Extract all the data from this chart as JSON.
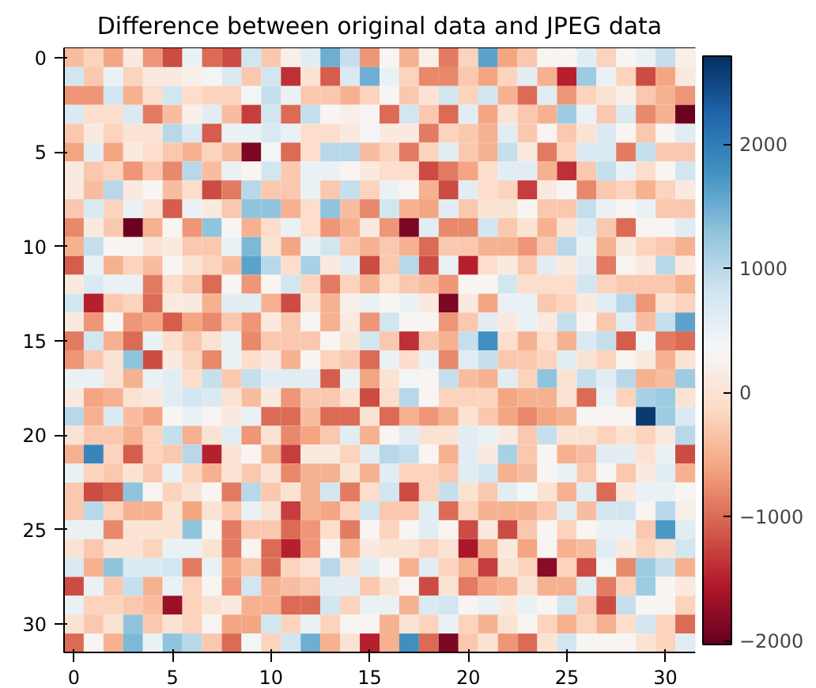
{
  "chart_data": {
    "type": "heatmap",
    "title": "Difference between original data and JPEG data",
    "categories": [
      "0",
      null,
      null,
      null,
      null,
      "5",
      null,
      null,
      null,
      null,
      "10",
      null,
      null,
      null,
      null,
      "15",
      null,
      null,
      null,
      null,
      "20",
      null,
      null,
      null,
      null,
      "25",
      null,
      null,
      null,
      null,
      "30",
      null
    ],
    "y_categories": [
      "0",
      null,
      null,
      null,
      null,
      "5",
      null,
      null,
      null,
      null,
      "10",
      null,
      null,
      null,
      null,
      "15",
      null,
      null,
      null,
      null,
      "20",
      null,
      null,
      null,
      null,
      "25",
      null,
      null,
      null,
      null,
      "30",
      null
    ],
    "clim": [
      -2030,
      2710
    ],
    "cticks": [
      -2000,
      -1000,
      0,
      1000,
      2000
    ],
    "cells": [
      [
        -400,
        -200,
        -600,
        100,
        -700,
        -1200,
        500,
        -1000,
        -1200,
        800,
        -300,
        200,
        600,
        1500,
        900,
        -700,
        300,
        -500,
        200,
        -900,
        -200,
        1600,
        -600,
        -300,
        300,
        300,
        600,
        -200,
        300,
        500,
        900,
        200
      ],
      [
        800,
        -300,
        500,
        -200,
        100,
        100,
        200,
        400,
        700,
        -300,
        800,
        -1400,
        0,
        -1100,
        700,
        1500,
        500,
        -200,
        -800,
        -800,
        -300,
        -600,
        -200,
        600,
        -500,
        -1500,
        1200,
        500,
        -200,
        -1200,
        -600,
        100
      ],
      [
        -700,
        -700,
        800,
        -500,
        -100,
        800,
        -100,
        -200,
        -200,
        400,
        900,
        500,
        -300,
        -300,
        -500,
        -200,
        300,
        -300,
        0,
        800,
        -200,
        800,
        -500,
        -1000,
        600,
        -700,
        -200,
        0,
        200,
        -300,
        -500,
        -700
      ],
      [
        700,
        -100,
        -100,
        700,
        -900,
        -400,
        200,
        600,
        -400,
        -1300,
        800,
        -1000,
        900,
        300,
        200,
        300,
        -1000,
        800,
        -300,
        -1000,
        600,
        -600,
        0,
        -300,
        -500,
        1200,
        500,
        -300,
        700,
        -800,
        -500,
        -2000
      ],
      [
        -300,
        100,
        -200,
        0,
        0,
        1000,
        700,
        -1100,
        500,
        500,
        700,
        500,
        -100,
        -100,
        100,
        400,
        100,
        100,
        -900,
        -200,
        -300,
        -500,
        600,
        -300,
        300,
        -300,
        0,
        700,
        300,
        -300,
        300,
        600
      ],
      [
        -600,
        600,
        -600,
        100,
        -100,
        -300,
        -500,
        -200,
        -400,
        -1900,
        400,
        -1000,
        -100,
        1000,
        1000,
        -400,
        -200,
        -900,
        -200,
        600,
        -300,
        -500,
        900,
        100,
        -900,
        -200,
        700,
        700,
        -900,
        900,
        -300,
        -300
      ],
      [
        100,
        -300,
        -200,
        -700,
        -300,
        -800,
        1000,
        -400,
        500,
        300,
        800,
        -300,
        500,
        500,
        300,
        100,
        -100,
        -100,
        -1200,
        -900,
        -600,
        -100,
        600,
        600,
        -500,
        -1400,
        -300,
        900,
        500,
        -100,
        300,
        800
      ],
      [
        100,
        -400,
        1000,
        100,
        300,
        -400,
        -100,
        -1200,
        -900,
        1000,
        -300,
        -300,
        500,
        -300,
        900,
        -200,
        500,
        300,
        -500,
        -1200,
        600,
        -100,
        -200,
        -1300,
        100,
        300,
        -800,
        -300,
        -200,
        -500,
        -200,
        100
      ],
      [
        -300,
        700,
        -200,
        500,
        0,
        -1100,
        500,
        100,
        -300,
        1300,
        1300,
        -500,
        -100,
        1300,
        -400,
        -800,
        800,
        -500,
        -600,
        600,
        -300,
        0,
        0,
        300,
        -300,
        -300,
        900,
        500,
        300,
        500,
        -300,
        -300
      ],
      [
        -800,
        100,
        -300,
        -2000,
        -500,
        300,
        -700,
        1300,
        300,
        -500,
        -100,
        500,
        -100,
        -700,
        -500,
        100,
        -700,
        -1900,
        600,
        -800,
        -800,
        800,
        -300,
        0,
        -500,
        0,
        700,
        -300,
        -1000,
        300,
        300,
        600
      ],
      [
        -500,
        900,
        300,
        300,
        0,
        100,
        -300,
        -300,
        500,
        1400,
        0,
        -600,
        500,
        800,
        -300,
        -500,
        -300,
        -500,
        -1000,
        -300,
        -300,
        -500,
        -500,
        -700,
        -300,
        1000,
        500,
        -500,
        100,
        -200,
        -300,
        -500
      ],
      [
        -1100,
        500,
        -500,
        -200,
        -400,
        300,
        0,
        -200,
        -400,
        1600,
        1000,
        -100,
        1100,
        100,
        600,
        -1200,
        -300,
        1000,
        -1200,
        500,
        -1500,
        -100,
        100,
        -300,
        600,
        100,
        600,
        -900,
        300,
        100,
        1000,
        100
      ],
      [
        100,
        700,
        500,
        500,
        -900,
        -100,
        -300,
        -1000,
        300,
        -700,
        300,
        800,
        -200,
        -900,
        -200,
        -500,
        -100,
        -300,
        -400,
        -700,
        300,
        300,
        800,
        -100,
        -100,
        -100,
        800,
        -200,
        -300,
        -300,
        -300,
        -500
      ],
      [
        800,
        -1500,
        -300,
        -200,
        -1000,
        100,
        100,
        -500,
        600,
        600,
        -500,
        -1200,
        0,
        -500,
        200,
        500,
        300,
        500,
        100,
        -1900,
        100,
        -600,
        500,
        500,
        -300,
        -200,
        100,
        600,
        1000,
        -700,
        0,
        -200
      ],
      [
        100,
        -700,
        300,
        -700,
        -600,
        -1100,
        -600,
        -800,
        -300,
        -700,
        100,
        -300,
        300,
        -500,
        100,
        -700,
        800,
        300,
        300,
        -700,
        -300,
        600,
        100,
        500,
        100,
        900,
        300,
        -300,
        600,
        -400,
        900,
        1600
      ],
      [
        -900,
        800,
        -500,
        -1000,
        500,
        -100,
        -300,
        0,
        500,
        -800,
        -300,
        -300,
        -300,
        300,
        0,
        800,
        -300,
        -1400,
        -300,
        -500,
        900,
        1800,
        -100,
        -500,
        -100,
        -500,
        700,
        900,
        -1100,
        400,
        -900,
        -1000
      ],
      [
        -700,
        -300,
        0,
        1300,
        -1200,
        100,
        -200,
        -800,
        500,
        -100,
        100,
        -500,
        300,
        -200,
        -300,
        -1000,
        500,
        -100,
        500,
        -800,
        600,
        900,
        -300,
        -300,
        -200,
        600,
        0,
        -200,
        300,
        100,
        -500,
        0
      ],
      [
        500,
        500,
        0,
        -500,
        500,
        600,
        -100,
        900,
        -300,
        900,
        600,
        600,
        600,
        -1100,
        500,
        -600,
        0,
        400,
        300,
        900,
        -400,
        -500,
        600,
        -200,
        1300,
        0,
        900,
        600,
        1000,
        -500,
        -400,
        1200
      ],
      [
        100,
        -600,
        -500,
        0,
        100,
        600,
        800,
        700,
        0,
        -400,
        100,
        -700,
        -300,
        -300,
        0,
        -1200,
        -100,
        1000,
        300,
        -200,
        -200,
        -200,
        -600,
        -500,
        -500,
        0,
        -1000,
        500,
        -200,
        1100,
        1200,
        0
      ],
      [
        1000,
        -500,
        700,
        -400,
        -600,
        300,
        500,
        300,
        100,
        500,
        -1000,
        -1000,
        -400,
        -1000,
        -1000,
        0,
        -1000,
        -500,
        -700,
        -500,
        0,
        -300,
        -600,
        -800,
        -600,
        -500,
        300,
        300,
        300,
        2600,
        1200,
        700
      ],
      [
        0,
        -300,
        -300,
        -500,
        -200,
        900,
        -500,
        0,
        600,
        -700,
        0,
        -800,
        -600,
        -300,
        600,
        -500,
        300,
        600,
        0,
        0,
        600,
        500,
        100,
        -300,
        900,
        0,
        0,
        -200,
        0,
        -200,
        100,
        1000
      ],
      [
        -500,
        1900,
        -200,
        -1100,
        -200,
        -300,
        1000,
        -1500,
        0,
        300,
        -500,
        -1300,
        100,
        100,
        -200,
        600,
        1000,
        900,
        300,
        -500,
        600,
        100,
        1100,
        -300,
        300,
        -500,
        -400,
        600,
        600,
        0,
        500,
        -1200
      ],
      [
        500,
        -200,
        -300,
        0,
        -300,
        500,
        -200,
        -500,
        0,
        -300,
        0,
        -800,
        -500,
        -500,
        0,
        -500,
        600,
        -200,
        -200,
        -300,
        600,
        800,
        -500,
        -400,
        300,
        500,
        -300,
        300,
        -300,
        100,
        600,
        -500
      ],
      [
        -300,
        -1200,
        -1100,
        1300,
        300,
        -200,
        0,
        300,
        -900,
        1000,
        -300,
        0,
        -500,
        800,
        -900,
        -100,
        800,
        -1200,
        -200,
        900,
        0,
        -300,
        600,
        400,
        0,
        -500,
        600,
        -1000,
        100,
        500,
        500,
        300
      ],
      [
        -300,
        1000,
        -200,
        -500,
        -500,
        0,
        -600,
        0,
        -300,
        500,
        0,
        -1300,
        -500,
        -600,
        -200,
        800,
        -300,
        -300,
        600,
        -1000,
        -200,
        -500,
        -500,
        -500,
        -300,
        600,
        -400,
        800,
        800,
        300,
        1000,
        200
      ],
      [
        500,
        500,
        -800,
        0,
        0,
        0,
        1300,
        300,
        -900,
        -300,
        -300,
        -1000,
        -700,
        -100,
        -900,
        300,
        -200,
        300,
        600,
        300,
        -1200,
        100,
        -1200,
        -300,
        300,
        -200,
        300,
        500,
        500,
        -300,
        1700,
        600
      ],
      [
        0,
        -300,
        0,
        0,
        -200,
        500,
        500,
        0,
        -900,
        300,
        -1000,
        -1500,
        -700,
        300,
        -500,
        100,
        0,
        0,
        -200,
        0,
        -1600,
        -500,
        100,
        -600,
        300,
        -500,
        -400,
        600,
        100,
        -200,
        0,
        800
      ],
      [
        700,
        -500,
        1300,
        700,
        700,
        800,
        -900,
        500,
        -600,
        -300,
        -1000,
        -200,
        0,
        1000,
        0,
        600,
        300,
        -500,
        600,
        -200,
        -500,
        -1300,
        0,
        -200,
        -1800,
        -200,
        -1200,
        400,
        -800,
        1200,
        900,
        -500
      ],
      [
        -1200,
        500,
        -300,
        900,
        -500,
        500,
        -200,
        300,
        -700,
        800,
        -500,
        -400,
        -300,
        600,
        600,
        -300,
        0,
        300,
        -1200,
        0,
        -900,
        -600,
        -500,
        0,
        -500,
        -500,
        600,
        -900,
        -200,
        1200,
        300,
        100
      ],
      [
        500,
        -200,
        -200,
        -300,
        -400,
        -1700,
        -200,
        0,
        100,
        -500,
        -500,
        -1000,
        -1000,
        800,
        -200,
        500,
        500,
        -500,
        700,
        800,
        300,
        500,
        100,
        500,
        300,
        800,
        -300,
        -1200,
        900,
        300,
        300,
        -200
      ],
      [
        0,
        -300,
        0,
        1300,
        -300,
        0,
        -200,
        300,
        -600,
        -600,
        800,
        -200,
        500,
        -200,
        300,
        300,
        -500,
        0,
        -200,
        500,
        -200,
        -500,
        0,
        300,
        -200,
        -500,
        -200,
        -500,
        -100,
        800,
        -200,
        -1000
      ],
      [
        -1000,
        300,
        -500,
        1400,
        500,
        1300,
        1000,
        -300,
        -1000,
        400,
        -200,
        800,
        1500,
        -500,
        0,
        -1500,
        -500,
        1800,
        -1000,
        -1900,
        -300,
        0,
        -700,
        -1000,
        0,
        800,
        300,
        300,
        300,
        0,
        -200,
        600
      ]
    ]
  }
}
